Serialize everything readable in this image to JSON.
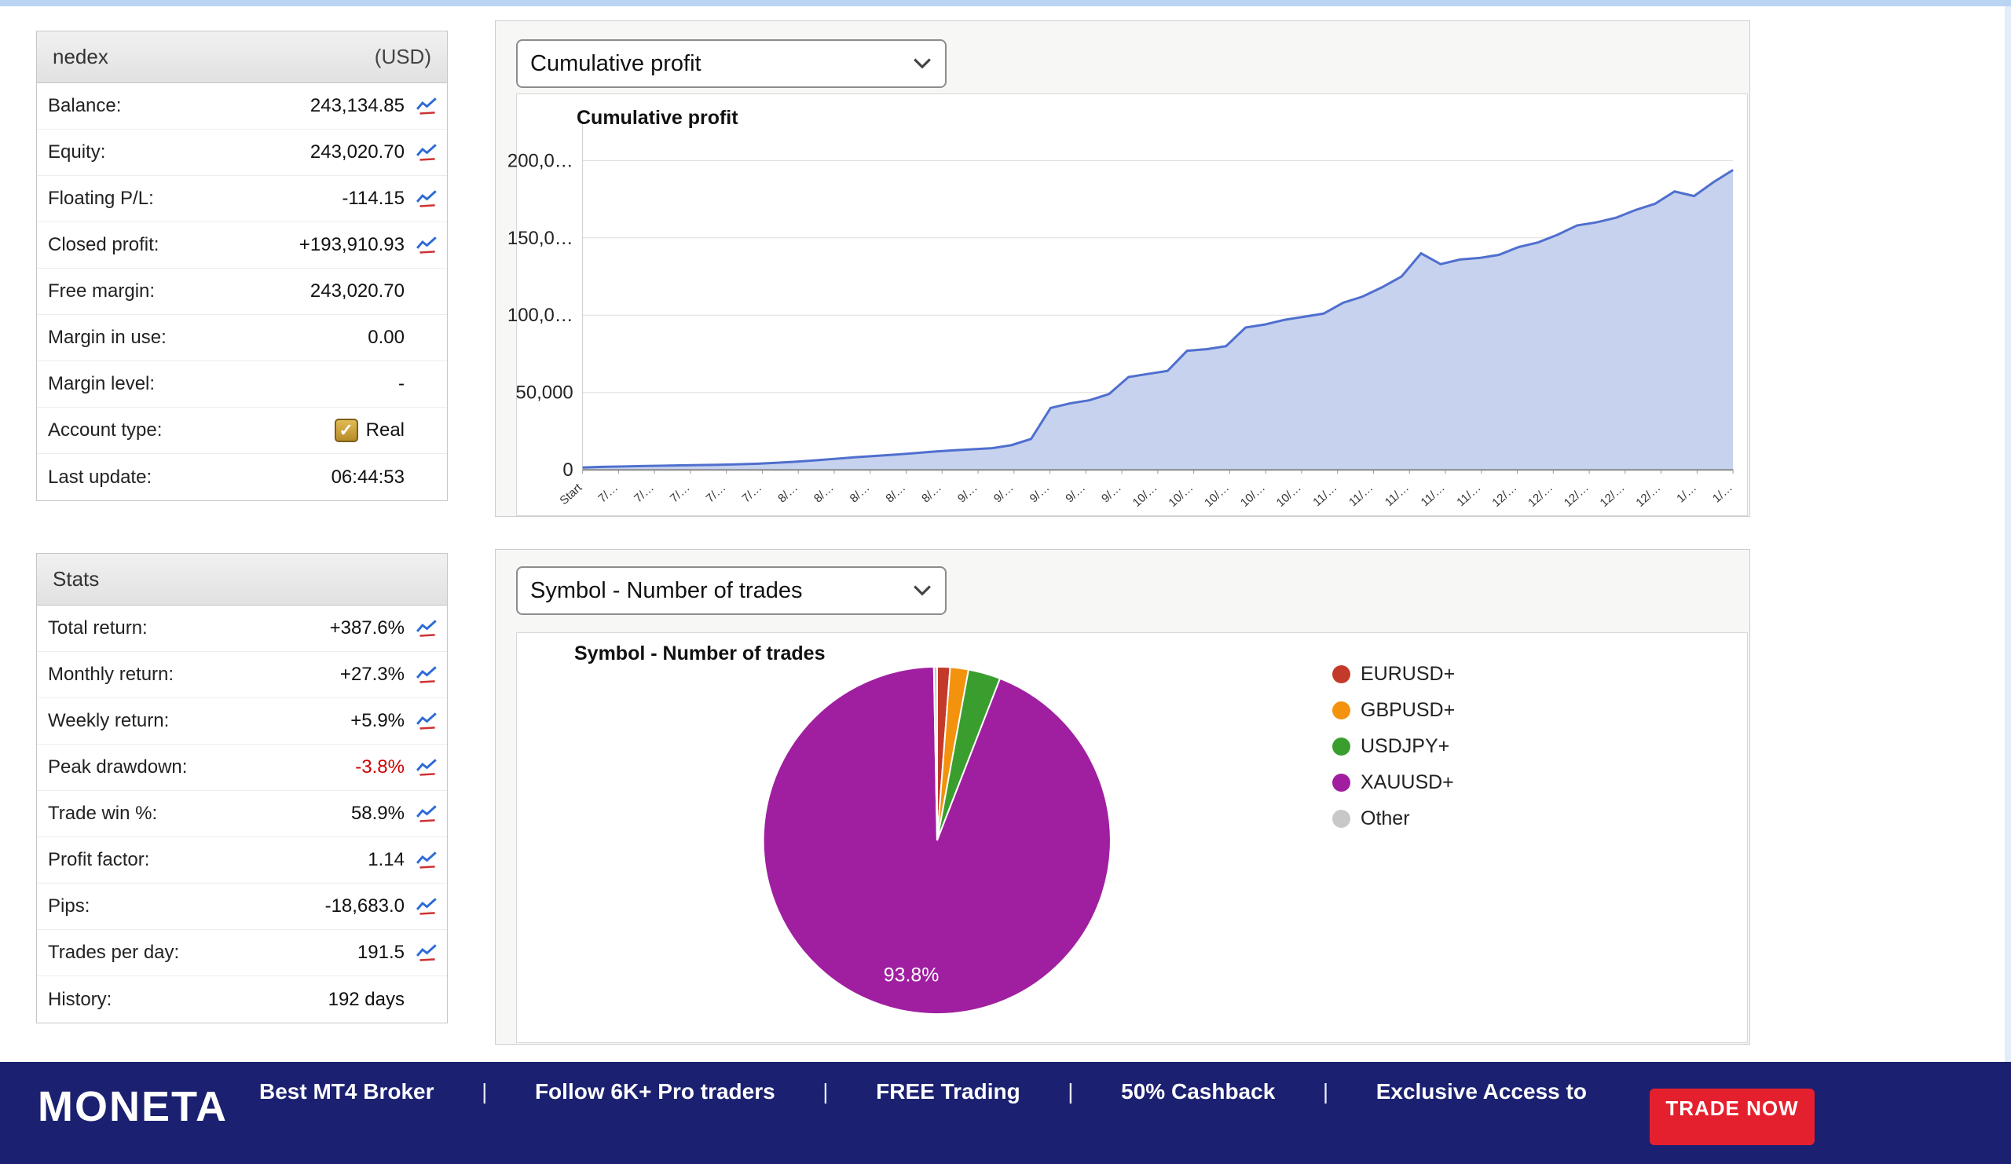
{
  "colors": {
    "line": "#4f6fce",
    "fill": "#c7d2ee",
    "grid": "#dddddd",
    "axis": "#888888",
    "drawdown_red": "#cc0000",
    "banner_bg": "#1b2070",
    "banner_button_bg": "#e5202e"
  },
  "account_panel": {
    "title": "nedex",
    "currency": "(USD)",
    "rows": [
      {
        "label": "Balance:",
        "value": "243,134.85",
        "icon": true
      },
      {
        "label": "Equity:",
        "value": "243,020.70",
        "icon": true
      },
      {
        "label": "Floating P/L:",
        "value": "-114.15",
        "icon": true
      },
      {
        "label": "Closed profit:",
        "value": "+193,910.93",
        "icon": true
      },
      {
        "label": "Free margin:",
        "value": "243,020.70",
        "icon": false
      },
      {
        "label": "Margin in use:",
        "value": "0.00",
        "icon": false
      },
      {
        "label": "Margin level:",
        "value": "-",
        "icon": false
      },
      {
        "label": "Account type:",
        "value": "Real",
        "icon": false,
        "checkbox": true
      },
      {
        "label": "Last update:",
        "value": "06:44:53",
        "icon": false
      }
    ]
  },
  "stats_panel": {
    "title": "Stats",
    "rows": [
      {
        "label": "Total return:",
        "value": "+387.6%",
        "icon": true
      },
      {
        "label": "Monthly return:",
        "value": "+27.3%",
        "icon": true
      },
      {
        "label": "Weekly return:",
        "value": "+5.9%",
        "icon": true
      },
      {
        "label": "Peak drawdown:",
        "value": "-3.8%",
        "icon": true,
        "red": true
      },
      {
        "label": "Trade win %:",
        "value": "58.9%",
        "icon": true
      },
      {
        "label": "Profit factor:",
        "value": "1.14",
        "icon": true
      },
      {
        "label": "Pips:",
        "value": "-18,683.0",
        "icon": true
      },
      {
        "label": "Trades per day:",
        "value": "191.5",
        "icon": true
      },
      {
        "label": "History:",
        "value": "192 days",
        "icon": false
      }
    ]
  },
  "profit_section": {
    "dropdown": "Cumulative profit",
    "chart_title": "Cumulative profit"
  },
  "trades_section": {
    "dropdown": "Symbol - Number of trades",
    "chart_title": "Symbol - Number of trades"
  },
  "chart_data": [
    {
      "type": "area",
      "title": "Cumulative profit",
      "ylim": [
        0,
        215000
      ],
      "y_ticks": [
        {
          "v": 0,
          "label": "0"
        },
        {
          "v": 50000,
          "label": "50,000"
        },
        {
          "v": 100000,
          "label": "100,0…"
        },
        {
          "v": 150000,
          "label": "150,0…"
        },
        {
          "v": 200000,
          "label": "200,0…"
        }
      ],
      "x_ticks": [
        "Start",
        "7/…",
        "7/…",
        "7/…",
        "7/…",
        "7/…",
        "8/…",
        "8/…",
        "8/…",
        "8/…",
        "8/…",
        "9/…",
        "9/…",
        "9/…",
        "9/…",
        "9/…",
        "10/…",
        "10/…",
        "10/…",
        "10/…",
        "10/…",
        "11/…",
        "11/…",
        "11/…",
        "11/…",
        "11/…",
        "12/…",
        "12/…",
        "12/…",
        "12/…",
        "12/…",
        "1/…",
        "1/…"
      ],
      "values": [
        1500,
        1900,
        2200,
        2500,
        2700,
        2900,
        3100,
        3300,
        3600,
        4000,
        4600,
        5300,
        6200,
        7200,
        8200,
        9000,
        9800,
        10800,
        11800,
        12600,
        13300,
        14000,
        16000,
        20000,
        40000,
        43000,
        45000,
        49000,
        60000,
        62000,
        64000,
        77000,
        78000,
        80000,
        92000,
        94000,
        97000,
        99000,
        101000,
        108000,
        112000,
        118000,
        125000,
        140000,
        133000,
        136000,
        137000,
        139000,
        144000,
        147000,
        152000,
        158000,
        160000,
        163000,
        168000,
        172000,
        180000,
        177000,
        186000,
        193910
      ],
      "line_color": "#4f6fce",
      "fill_color": "#c7d2ee"
    },
    {
      "type": "pie",
      "title": "Symbol - Number of trades",
      "slices": [
        {
          "label": "EURUSD+",
          "value": 1.2,
          "color": "#c43a2a"
        },
        {
          "label": "GBPUSD+",
          "value": 1.7,
          "color": "#f2920d"
        },
        {
          "label": "USDJPY+",
          "value": 3.0,
          "color": "#3a9e2f"
        },
        {
          "label": "XAUUSD+",
          "value": 93.8,
          "color": "#a01fa0"
        },
        {
          "label": "Other",
          "value": 0.3,
          "color": "#c8c8c8"
        }
      ],
      "slice_label": "93.8%"
    }
  ],
  "banner": {
    "brand": "MONETA",
    "items": [
      "Best MT4 Broker",
      "Follow 6K+ Pro traders",
      "FREE Trading",
      "50% Cashback",
      "Exclusive Access to"
    ],
    "separator": "|",
    "button": "TRADE NOW"
  }
}
